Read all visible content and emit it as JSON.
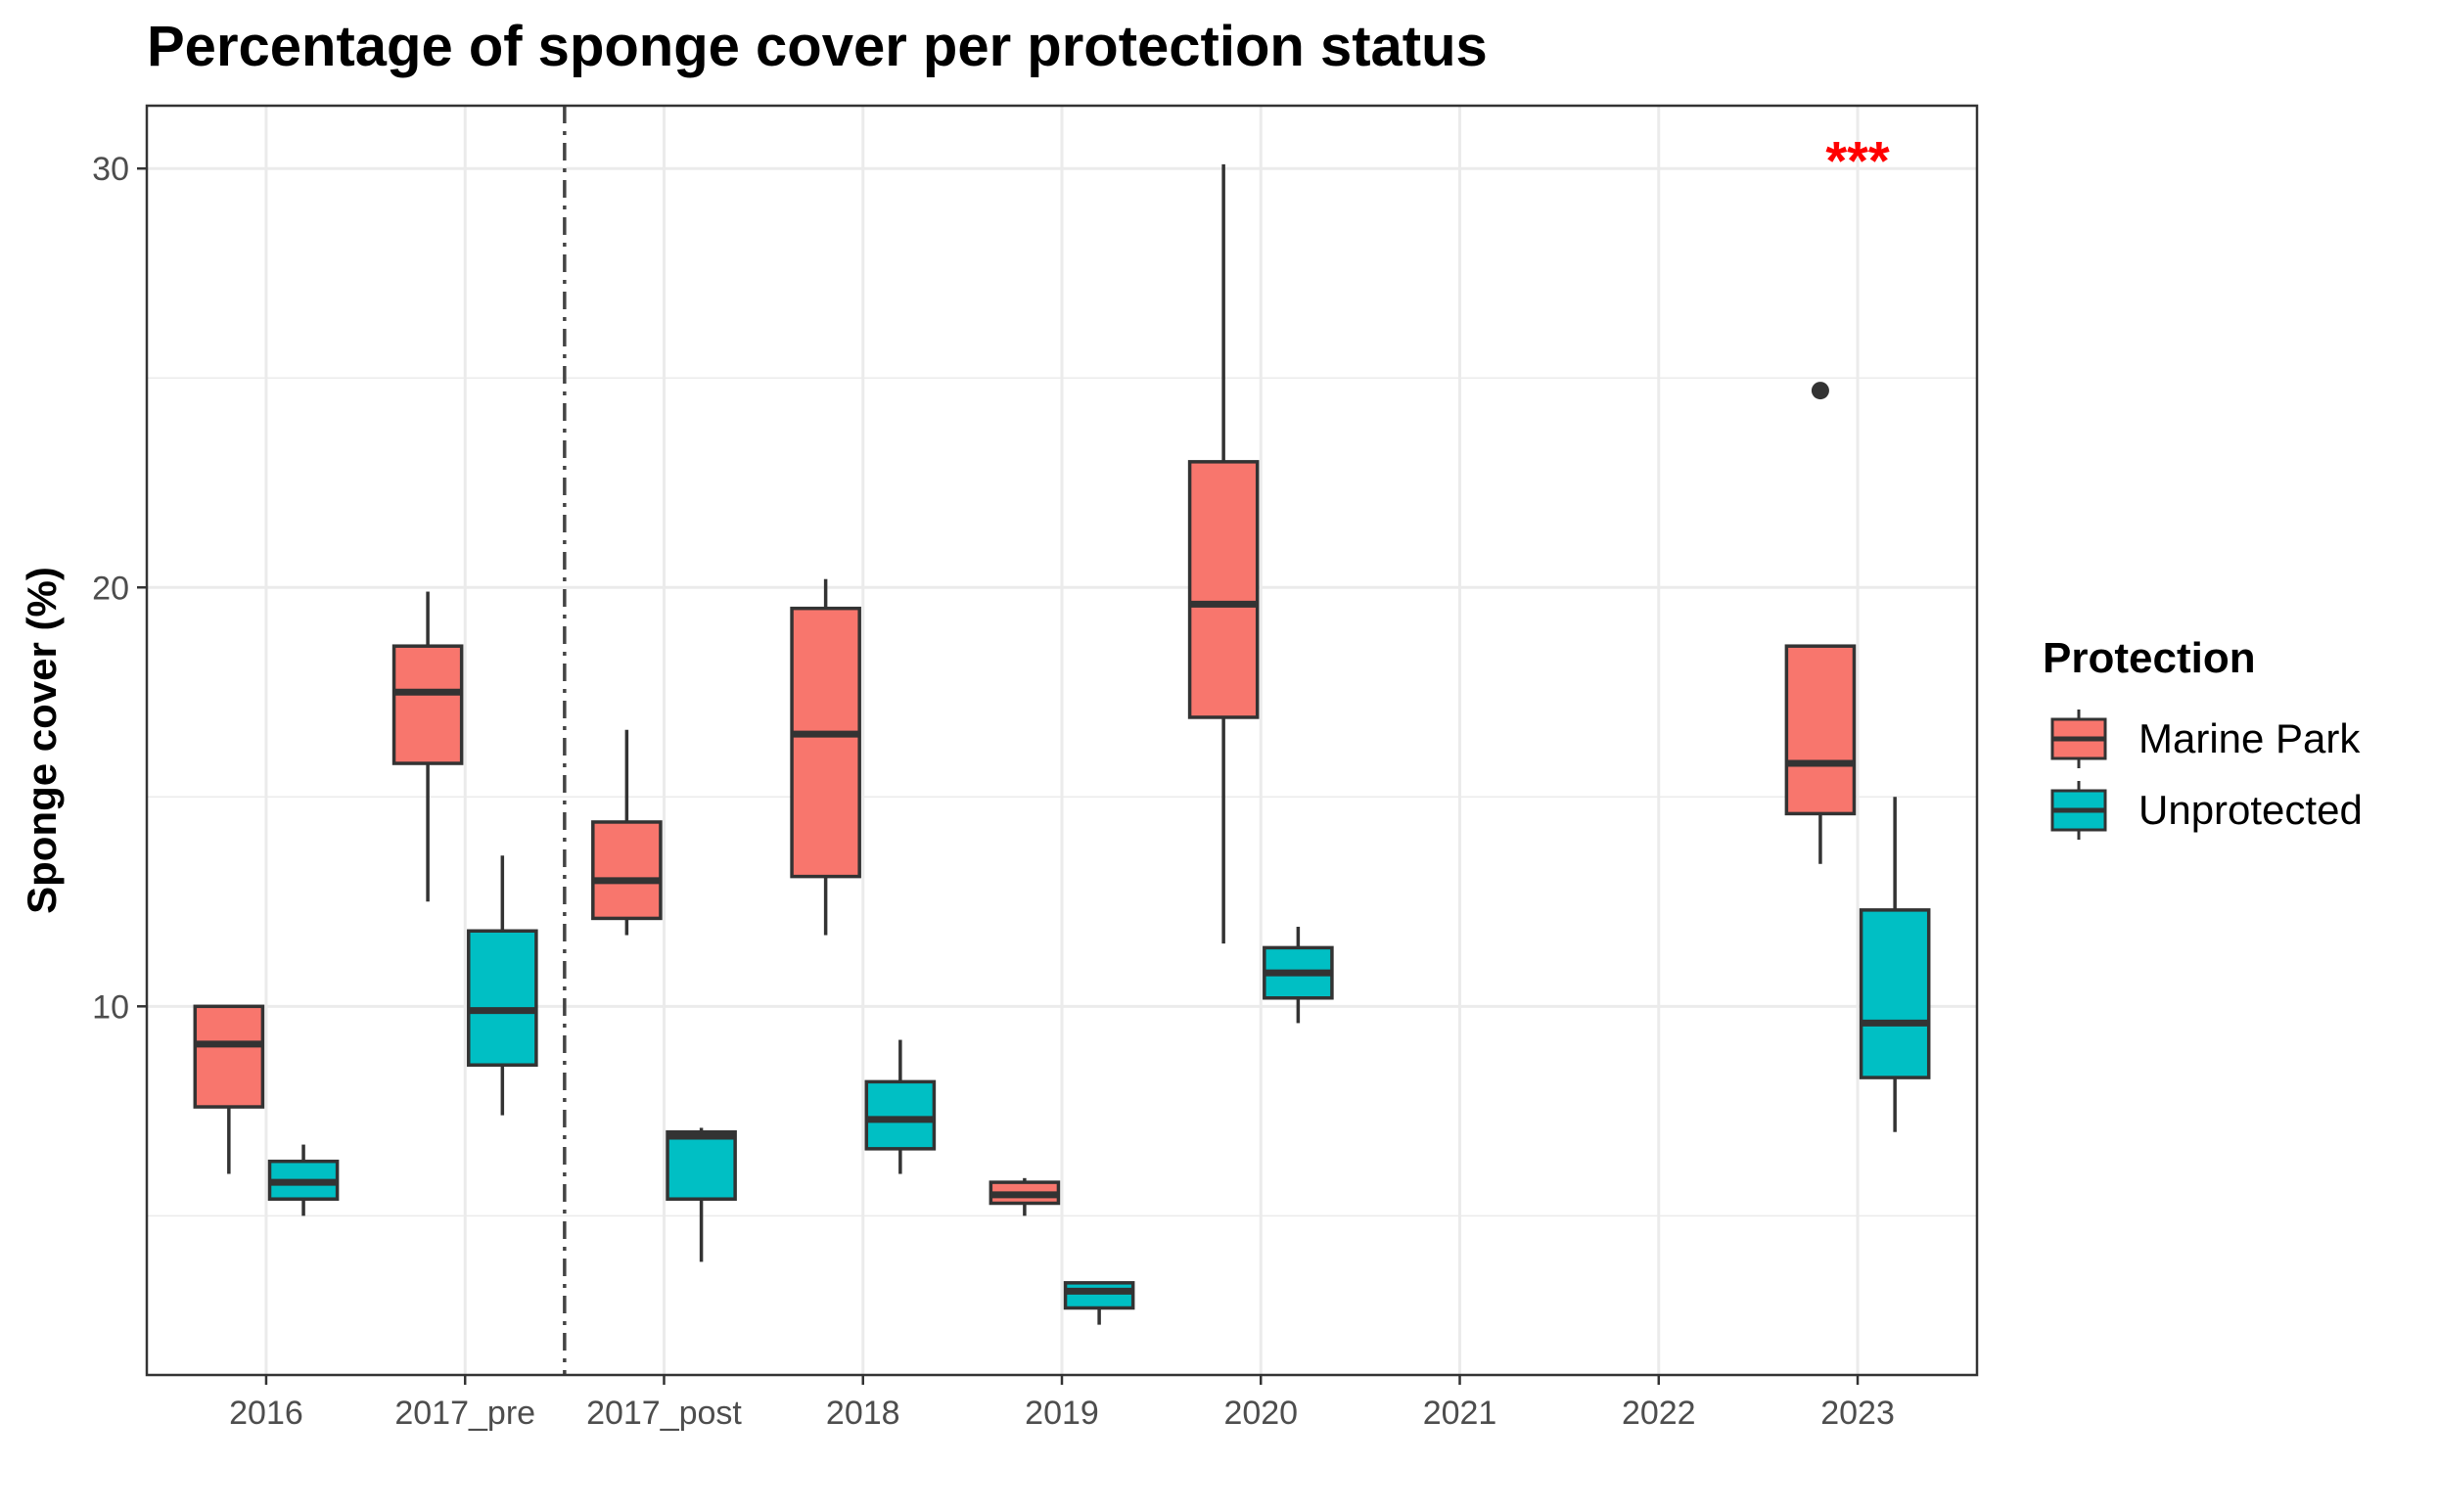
{
  "chart_data": {
    "type": "boxplot",
    "title": "Percentage of sponge cover per protection status",
    "xlabel": "",
    "ylabel": "Sponge cover (%)",
    "ylim": [
      1.2,
      31.5
    ],
    "yticks": [
      10,
      20,
      30
    ],
    "grid": true,
    "categories": [
      "2016",
      "2017_pre",
      "2017_post",
      "2018",
      "2019",
      "2020",
      "2021",
      "2022",
      "2023"
    ],
    "legend": {
      "title": "Protection",
      "position": "right"
    },
    "series": [
      {
        "name": "Marine Park",
        "color": "#F8766D",
        "boxes": [
          {
            "category": "2016",
            "min": 6.0,
            "q1": 7.6,
            "median": 9.1,
            "q3": 10.0,
            "max": 10.0,
            "outliers": []
          },
          {
            "category": "2017_pre",
            "min": 12.5,
            "q1": 15.8,
            "median": 17.5,
            "q3": 18.6,
            "max": 19.9,
            "outliers": []
          },
          {
            "category": "2017_post",
            "min": 11.7,
            "q1": 12.1,
            "median": 13.0,
            "q3": 14.4,
            "max": 16.6,
            "outliers": []
          },
          {
            "category": "2018",
            "min": 11.7,
            "q1": 13.1,
            "median": 16.5,
            "q3": 19.5,
            "max": 20.2,
            "outliers": []
          },
          {
            "category": "2019",
            "min": 5.0,
            "q1": 5.3,
            "median": 5.5,
            "q3": 5.8,
            "max": 5.9,
            "outliers": []
          },
          {
            "category": "2020",
            "min": 11.5,
            "q1": 16.9,
            "median": 19.6,
            "q3": 23.0,
            "max": 30.1,
            "outliers": []
          },
          {
            "category": "2023",
            "min": 13.4,
            "q1": 14.6,
            "median": 15.8,
            "q3": 18.6,
            "max": 18.6,
            "outliers": [
              24.7
            ]
          }
        ]
      },
      {
        "name": "Unprotected",
        "color": "#00BFC4",
        "boxes": [
          {
            "category": "2016",
            "min": 5.0,
            "q1": 5.4,
            "median": 5.8,
            "q3": 6.3,
            "max": 6.7,
            "outliers": []
          },
          {
            "category": "2017_pre",
            "min": 7.4,
            "q1": 8.6,
            "median": 9.9,
            "q3": 11.8,
            "max": 13.6,
            "outliers": []
          },
          {
            "category": "2017_post",
            "min": 3.9,
            "q1": 5.4,
            "median": 6.9,
            "q3": 7.0,
            "max": 7.1,
            "outliers": []
          },
          {
            "category": "2018",
            "min": 6.0,
            "q1": 6.6,
            "median": 7.3,
            "q3": 8.2,
            "max": 9.2,
            "outliers": []
          },
          {
            "category": "2019",
            "min": 2.4,
            "q1": 2.8,
            "median": 3.2,
            "q3": 3.4,
            "max": 3.4,
            "outliers": []
          },
          {
            "category": "2020",
            "min": 9.6,
            "q1": 10.2,
            "median": 10.8,
            "q3": 11.4,
            "max": 11.9,
            "outliers": []
          },
          {
            "category": "2023",
            "min": 7.0,
            "q1": 8.3,
            "median": 9.6,
            "q3": 12.3,
            "max": 15.0,
            "outliers": []
          }
        ]
      }
    ],
    "annotations": [
      {
        "text": "***",
        "category": "2023",
        "y": 30.3,
        "color": "#FF0000"
      }
    ],
    "reference_lines": [
      {
        "orientation": "vertical",
        "between": [
          "2017_pre",
          "2017_post"
        ],
        "style": "dashdot"
      }
    ]
  }
}
